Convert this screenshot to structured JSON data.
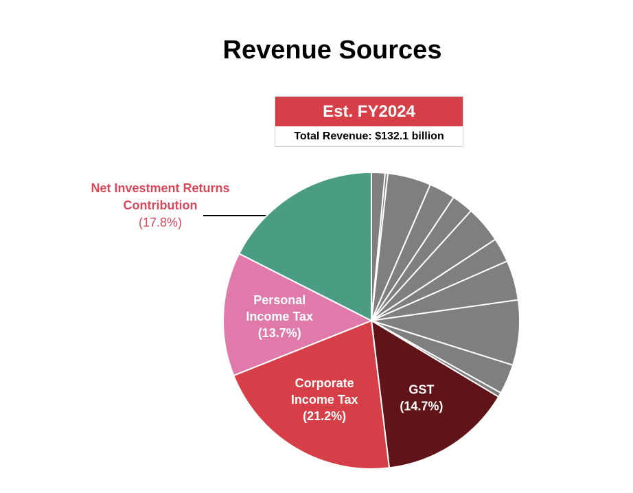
{
  "title": "Revenue Sources",
  "badge": {
    "heading": "Est. FY2024",
    "subheading": "Total Revenue: $132.1 billion"
  },
  "chart_data": {
    "type": "pie",
    "title": "Revenue Sources",
    "subtitle": "Est. FY2024",
    "annotation": "Total Revenue: $132.1 billion",
    "start_angle_deg": 0,
    "direction": "clockwise",
    "slices": [
      {
        "value": 1.5,
        "color": "#7f7f7f"
      },
      {
        "value": 0.3,
        "color": "#7f7f7f"
      },
      {
        "value": 4.8,
        "color": "#7f7f7f"
      },
      {
        "value": 2.9,
        "color": "#7f7f7f"
      },
      {
        "value": 2.4,
        "color": "#7f7f7f"
      },
      {
        "value": 4.1,
        "color": "#7f7f7f"
      },
      {
        "value": 2.7,
        "color": "#7f7f7f"
      },
      {
        "value": 4.4,
        "color": "#7f7f7f"
      },
      {
        "value": 7.2,
        "color": "#7f7f7f"
      },
      {
        "value": 3.3,
        "color": "#7f7f7f"
      },
      {
        "value": 0.5,
        "color": "#7f7f7f"
      },
      {
        "value": 14.7,
        "color": "#611418",
        "label_lines": [
          "GST",
          "(14.7%)"
        ]
      },
      {
        "value": 21.2,
        "color": "#d63f47",
        "label_lines": [
          "Corporate",
          "Income Tax",
          "(21.2%)"
        ]
      },
      {
        "value": 13.7,
        "color": "#df7aaa",
        "label_lines": [
          "Personal",
          "Income Tax",
          "(13.7%)"
        ]
      },
      {
        "value": 17.8,
        "color": "#4a9c82"
      }
    ],
    "external_label": {
      "name_lines": [
        "Net Investment Returns",
        "Contribution"
      ],
      "percent": "(17.8%)",
      "color": "#d9475a"
    }
  }
}
